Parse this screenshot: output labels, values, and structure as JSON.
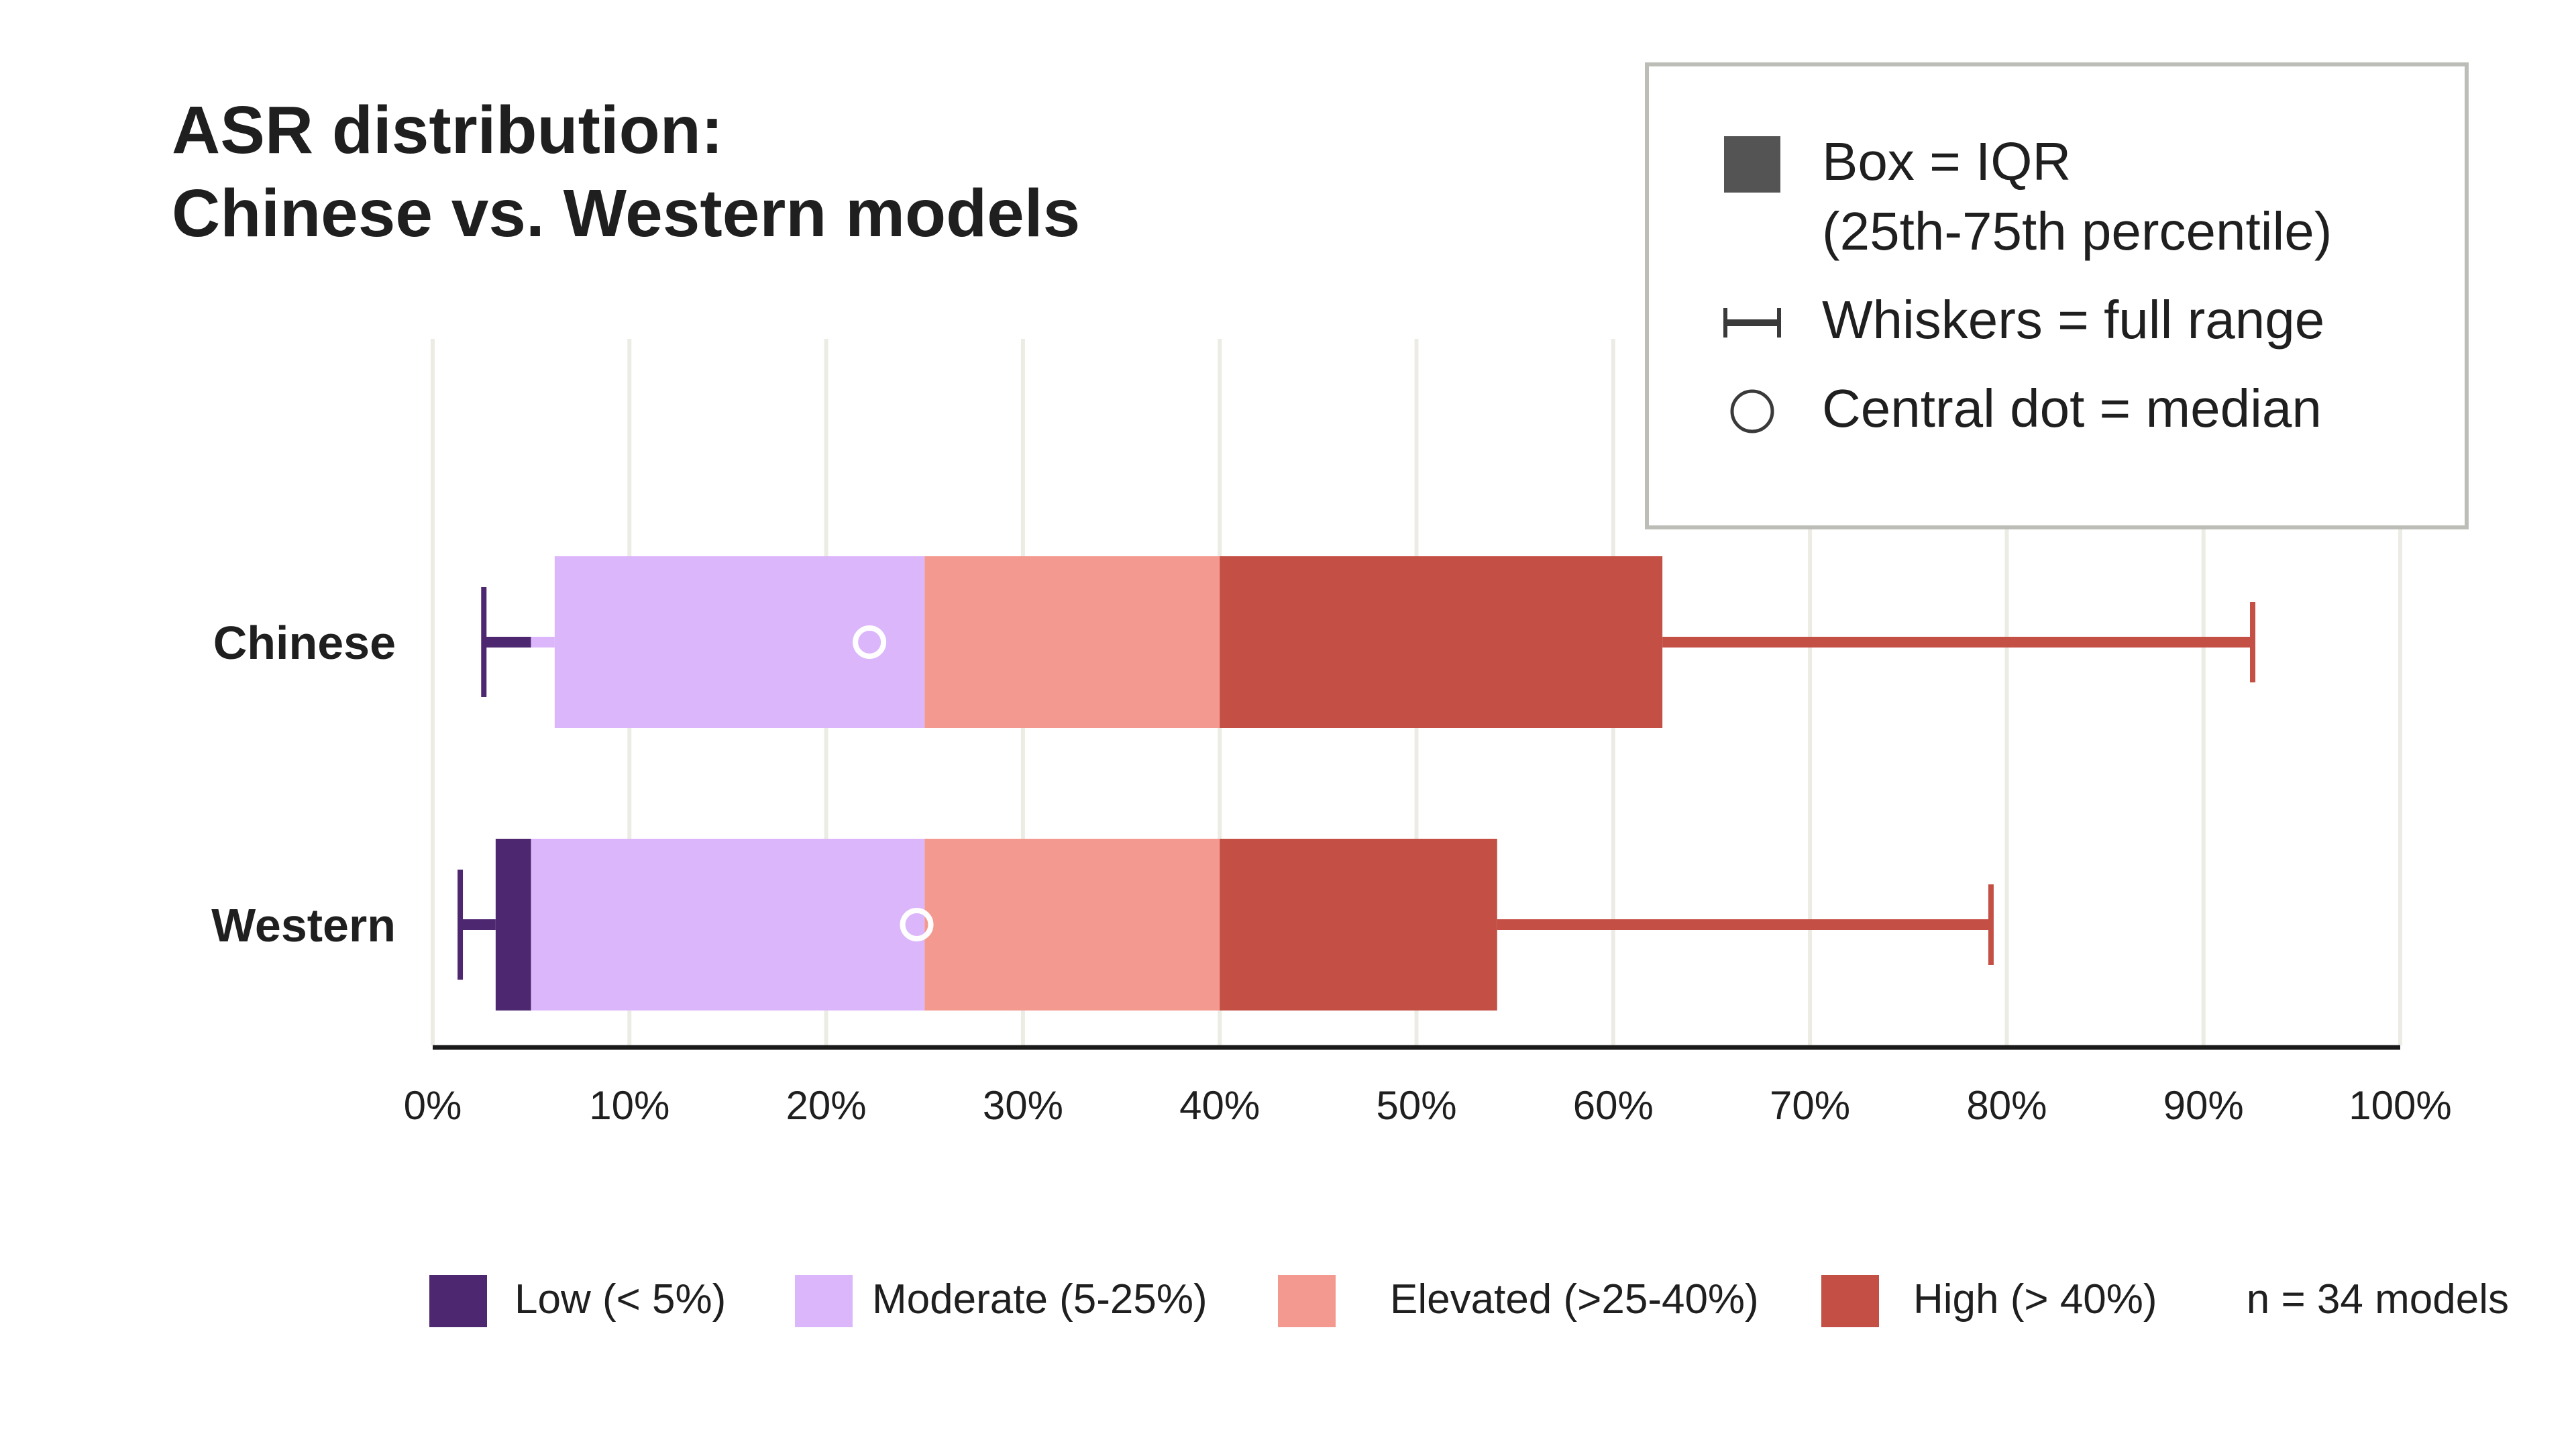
{
  "chart_data": {
    "type": "boxplot",
    "orientation": "horizontal",
    "title": [
      "ASR distribution:",
      "Chinese vs. Western models"
    ],
    "xlim": [
      0,
      100
    ],
    "xticks": [
      0,
      10,
      20,
      30,
      40,
      50,
      60,
      70,
      80,
      90,
      100
    ],
    "xtick_labels": [
      "0%",
      "10%",
      "20%",
      "30%",
      "40%",
      "50%",
      "60%",
      "70%",
      "80%",
      "90%",
      "100%"
    ],
    "grid": "vertical",
    "categories": [
      "Chinese",
      "Western"
    ],
    "series": [
      {
        "category": "Chinese",
        "min": 2.6,
        "q1": 6.2,
        "median": 22.2,
        "q3": 62.5,
        "max": 92.5
      },
      {
        "category": "Western",
        "min": 1.4,
        "q1": 3.2,
        "median": 24.6,
        "q3": 54.1,
        "max": 79.2
      }
    ],
    "bands": [
      {
        "label": "Low (< 5%)",
        "from": 0,
        "to": 5,
        "color": "#4d2870"
      },
      {
        "label": "Moderate (5-25%)",
        "from": 5,
        "to": 25,
        "color": "#dcb6fa"
      },
      {
        "label": "Elevated (>25-40%)",
        "from": 25,
        "to": 40,
        "color": "#f49990"
      },
      {
        "label": "High (> 40%)",
        "from": 40,
        "to": 100,
        "color": "#c44f44"
      }
    ],
    "key": [
      {
        "icon": "box-swatch-icon",
        "lines": [
          "Box = IQR",
          "(25th-75th percentile)"
        ]
      },
      {
        "icon": "whisker-icon",
        "lines": [
          "Whiskers = full range"
        ]
      },
      {
        "icon": "circle-icon",
        "lines": [
          "Central dot = median"
        ]
      }
    ],
    "note": "n = 34 models",
    "legend_position": "bottom"
  }
}
